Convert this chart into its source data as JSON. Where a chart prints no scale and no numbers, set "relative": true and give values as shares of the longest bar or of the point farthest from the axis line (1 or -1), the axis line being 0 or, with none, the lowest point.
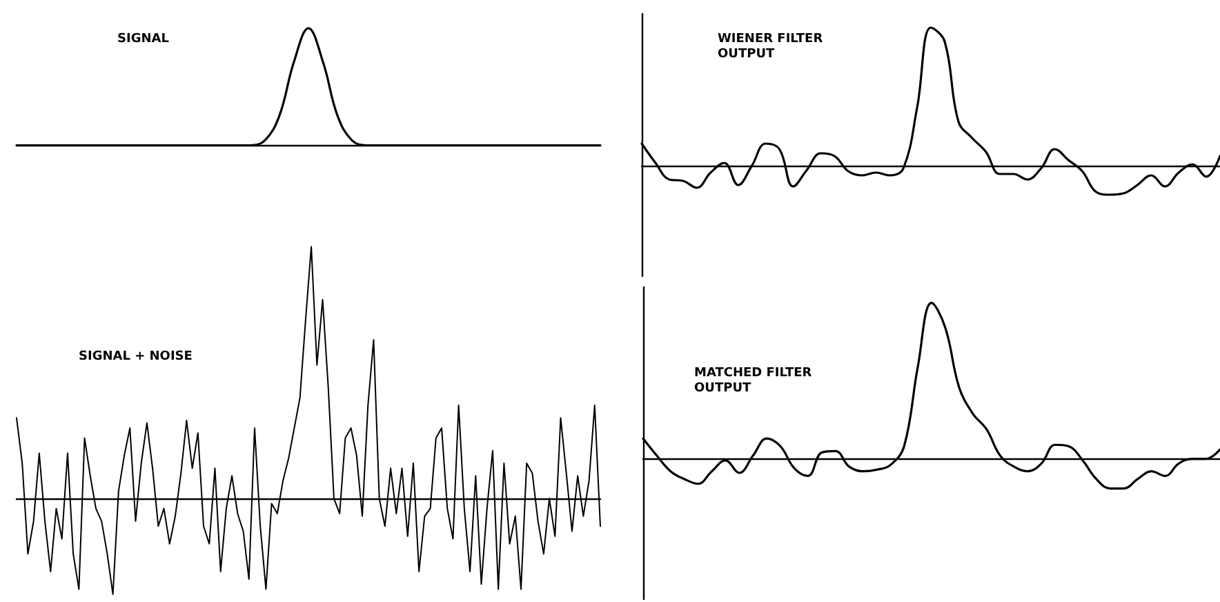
{
  "chart_data": [
    {
      "type": "line",
      "title": "SIGNAL",
      "relative": true,
      "tick_labels": false,
      "marker": "none",
      "line_style": "solid",
      "categories": [
        null,
        null,
        null,
        null,
        null,
        null,
        null,
        null,
        null,
        null,
        null,
        null,
        null,
        null,
        null,
        null,
        null,
        null,
        null,
        null,
        null,
        null,
        null,
        null,
        null,
        null,
        null,
        null,
        null,
        null,
        null,
        null,
        null,
        null,
        null,
        null,
        null,
        null,
        null,
        null,
        null
      ],
      "series": [
        {
          "color": "#000000",
          "values": [
            0,
            0,
            0,
            0,
            0,
            0,
            0,
            0,
            0,
            0,
            0,
            0,
            0,
            0,
            0,
            0,
            0,
            0.04,
            0.25,
            0.71,
            1,
            0.71,
            0.25,
            0.04,
            0,
            0,
            0,
            0,
            0,
            0,
            0,
            0,
            0,
            0,
            0,
            0,
            0,
            0,
            0,
            0,
            0
          ]
        }
      ]
    },
    {
      "type": "line",
      "title": "SIGNAL + NOISE",
      "relative": true,
      "tick_labels": false,
      "marker": "none",
      "line_style": "solid",
      "categories": [
        null,
        null,
        null,
        null,
        null,
        null,
        null,
        null,
        null,
        null,
        null,
        null,
        null,
        null,
        null,
        null,
        null,
        null,
        null,
        null,
        null,
        null,
        null,
        null,
        null,
        null,
        null,
        null,
        null,
        null,
        null,
        null,
        null,
        null,
        null,
        null,
        null,
        null,
        null,
        null,
        null,
        null,
        null,
        null,
        null,
        null,
        null,
        null,
        null,
        null,
        null,
        null,
        null,
        null,
        null,
        null,
        null,
        null,
        null,
        null,
        null,
        null,
        null,
        null,
        null,
        null,
        null,
        null,
        null,
        null,
        null,
        null,
        null,
        null,
        null,
        null,
        null,
        null,
        null,
        null,
        null,
        null,
        null,
        null,
        null,
        null,
        null,
        null,
        null,
        null,
        null,
        null,
        null,
        null,
        null,
        null,
        null,
        null,
        null,
        null,
        null,
        null,
        null,
        null
      ],
      "series": [
        {
          "color": "#000000",
          "values": [
            0.32,
            0.14,
            -0.22,
            -0.09,
            0.18,
            -0.09,
            -0.29,
            -0.04,
            -0.16,
            0.18,
            -0.22,
            -0.36,
            0.24,
            0.09,
            -0.04,
            -0.09,
            -0.22,
            -0.38,
            0.03,
            0.17,
            0.28,
            -0.09,
            0.14,
            0.3,
            0.12,
            -0.11,
            -0.04,
            -0.18,
            -0.07,
            0.1,
            0.31,
            0.12,
            0.26,
            -0.11,
            -0.18,
            0.12,
            -0.29,
            -0.04,
            0.09,
            -0.06,
            -0.13,
            -0.32,
            0.28,
            -0.11,
            -0.36,
            -0.02,
            -0.06,
            0.07,
            0.16,
            0.28,
            0.4,
            0.71,
            1,
            0.53,
            0.79,
            0.44,
            0,
            -0.06,
            0.24,
            0.28,
            0.17,
            -0.07,
            0.37,
            0.63,
            0,
            -0.11,
            0.12,
            -0.06,
            0.12,
            -0.15,
            0.14,
            -0.29,
            -0.07,
            -0.04,
            0.24,
            0.28,
            -0.04,
            -0.16,
            0.37,
            -0.04,
            -0.29,
            0.09,
            -0.34,
            -0.04,
            0.19,
            -0.36,
            0.14,
            -0.18,
            -0.07,
            -0.36,
            0.14,
            0.1,
            -0.09,
            -0.22,
            0,
            -0.15,
            0.32,
            0.1,
            -0.13,
            0.09,
            -0.07,
            0.07,
            0.37,
            -0.11
          ]
        }
      ]
    },
    {
      "type": "line",
      "title": "WIENER FILTER\nOUTPUT",
      "relative": true,
      "tick_labels": false,
      "marker": "none",
      "line_style": "solid",
      "categories": [
        null,
        null,
        null,
        null,
        null,
        null,
        null,
        null,
        null,
        null,
        null,
        null,
        null,
        null,
        null,
        null,
        null,
        null,
        null,
        null,
        null,
        null,
        null,
        null,
        null,
        null,
        null,
        null,
        null,
        null,
        null,
        null,
        null,
        null,
        null,
        null,
        null,
        null,
        null,
        null,
        null,
        null,
        null
      ],
      "series": [
        {
          "color": "#000000",
          "values": [
            0.16,
            0.02,
            -0.1,
            -0.11,
            -0.16,
            -0.05,
            0.02,
            -0.14,
            0,
            0.16,
            0.12,
            -0.15,
            -0.03,
            0.09,
            0.07,
            -0.04,
            -0.07,
            -0.05,
            -0.07,
            -0.02,
            0.42,
            1,
            0.9,
            0.32,
            0.2,
            0.1,
            -0.06,
            -0.06,
            -0.1,
            -0.02,
            0.12,
            0.04,
            -0.04,
            -0.19,
            -0.21,
            -0.2,
            -0.14,
            -0.07,
            -0.15,
            -0.05,
            0.01,
            -0.08,
            0.07
          ]
        }
      ]
    },
    {
      "type": "line",
      "title": "MATCHED FILTER\nOUTPUT",
      "relative": true,
      "tick_labels": false,
      "marker": "none",
      "line_style": "solid",
      "categories": [
        null,
        null,
        null,
        null,
        null,
        null,
        null,
        null,
        null,
        null,
        null,
        null,
        null,
        null,
        null,
        null,
        null,
        null,
        null,
        null,
        null,
        null,
        null,
        null,
        null,
        null,
        null,
        null,
        null,
        null,
        null,
        null,
        null,
        null,
        null,
        null,
        null,
        null,
        null,
        null,
        null,
        null,
        null
      ],
      "series": [
        {
          "color": "#000000",
          "values": [
            0.13,
            0.02,
            -0.08,
            -0.13,
            -0.16,
            -0.08,
            -0.01,
            -0.09,
            0.02,
            0.13,
            0.08,
            -0.06,
            -0.11,
            0.04,
            0.05,
            -0.05,
            -0.08,
            -0.07,
            -0.04,
            0.08,
            0.59,
            1,
            0.84,
            0.46,
            0.29,
            0.19,
            0.02,
            -0.05,
            -0.08,
            -0.03,
            0.09,
            0.08,
            -0.01,
            -0.13,
            -0.19,
            -0.19,
            -0.13,
            -0.08,
            -0.11,
            -0.03,
            0,
            0,
            0.06
          ]
        }
      ]
    }
  ]
}
